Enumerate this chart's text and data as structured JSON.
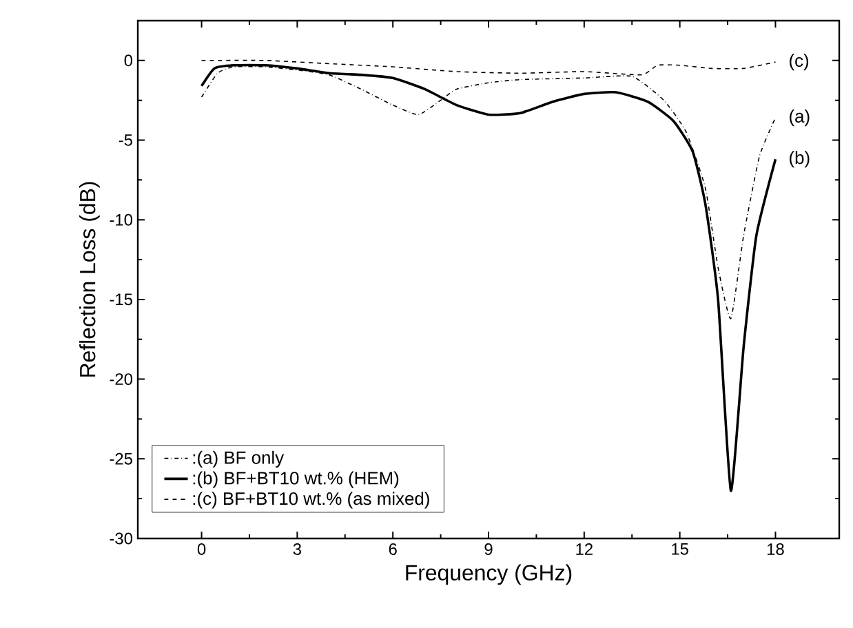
{
  "chart_data": {
    "type": "line",
    "xlabel": "Frequency (GHz)",
    "ylabel": "Reflection Loss (dB)",
    "xlim": [
      -2,
      20
    ],
    "ylim": [
      -30,
      2.5
    ],
    "xticks": [
      0,
      3,
      6,
      9,
      12,
      15,
      18
    ],
    "yticks": [
      -30,
      -25,
      -20,
      -15,
      -10,
      -5,
      0
    ],
    "legend": "bottom left",
    "grid": false,
    "series": [
      {
        "name": ":(a) BF only",
        "color": "#000000",
        "line_style": "dashdot",
        "x": [
          0,
          0.5,
          1,
          2,
          3,
          4,
          5,
          6,
          6.8,
          7.5,
          8,
          9,
          10,
          12,
          13.5,
          14.5,
          15.2,
          15.8,
          16.2,
          16.6,
          17.0,
          17.5,
          18
        ],
        "values": [
          -2.3,
          -0.8,
          -0.4,
          -0.4,
          -0.6,
          -0.9,
          -1.8,
          -2.8,
          -3.4,
          -2.5,
          -1.8,
          -1.4,
          -1.2,
          -1.1,
          -1.0,
          -2.5,
          -4.5,
          -8,
          -13,
          -16.2,
          -11,
          -6,
          -3.6
        ]
      },
      {
        "name": ":(b) BF+BT10 wt.% (HEM)",
        "color": "#000000",
        "line_style": "solid",
        "x": [
          0,
          0.4,
          1,
          2,
          3,
          4,
          5,
          6,
          7,
          8,
          9,
          10,
          11,
          12,
          13,
          14,
          14.8,
          15.4,
          15.8,
          16.2,
          16.6,
          17.0,
          17.4,
          18
        ],
        "values": [
          -1.6,
          -0.5,
          -0.3,
          -0.3,
          -0.5,
          -0.8,
          -0.9,
          -1.1,
          -1.8,
          -2.8,
          -3.4,
          -3.3,
          -2.6,
          -2.1,
          -2.0,
          -2.6,
          -3.8,
          -5.7,
          -9,
          -15,
          -27,
          -18,
          -11,
          -6.2
        ]
      },
      {
        "name": ":(c) BF+BT10 wt.% (as mixed)",
        "color": "#000000",
        "line_style": "dashed",
        "x": [
          0,
          2,
          4,
          6,
          8,
          10,
          12,
          13.8,
          14.3,
          15,
          16,
          17,
          18
        ],
        "values": [
          0,
          0,
          -0.2,
          -0.4,
          -0.7,
          -0.8,
          -0.7,
          -0.9,
          -0.3,
          -0.3,
          -0.5,
          -0.5,
          -0.1
        ]
      }
    ],
    "annotations": [
      "(a)",
      "(b)",
      "(c)"
    ]
  }
}
